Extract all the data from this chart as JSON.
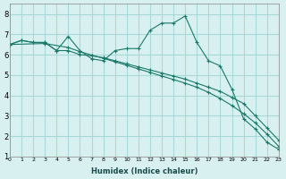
{
  "xlabel": "Humidex (Indice chaleur)",
  "bg_color": "#d8f0f0",
  "grid_color": "#a8d8d8",
  "line_color": "#1a7a6a",
  "xlim": [
    0,
    23
  ],
  "ylim": [
    1,
    8.5
  ],
  "xticks": [
    0,
    1,
    2,
    3,
    4,
    5,
    6,
    7,
    8,
    9,
    10,
    11,
    12,
    13,
    14,
    15,
    16,
    17,
    18,
    19,
    20,
    21,
    22,
    23
  ],
  "yticks": [
    1,
    2,
    3,
    4,
    5,
    6,
    7,
    8
  ],
  "series": [
    {
      "x": [
        0,
        1,
        2,
        3,
        4,
        5,
        6,
        7,
        8,
        9,
        10,
        11,
        12,
        13,
        14,
        15,
        16,
        17,
        18,
        19,
        20,
        21,
        22,
        23
      ],
      "y": [
        6.5,
        6.7,
        6.6,
        6.6,
        6.2,
        6.9,
        6.2,
        5.8,
        5.7,
        6.2,
        6.3,
        6.3,
        7.2,
        7.55,
        7.55,
        7.9,
        6.6,
        5.7,
        5.45,
        4.3,
        2.85,
        2.35,
        1.7,
        1.35
      ],
      "marker": "+"
    },
    {
      "x": [
        0,
        1,
        2,
        3,
        4,
        5,
        6,
        7,
        8,
        9,
        10,
        11,
        12,
        13,
        14,
        15,
        16,
        17,
        18,
        19,
        20,
        21,
        22,
        23
      ],
      "y": [
        6.5,
        6.7,
        6.6,
        6.6,
        6.2,
        6.2,
        6.0,
        5.95,
        5.85,
        5.7,
        5.55,
        5.4,
        5.25,
        5.1,
        4.95,
        4.8,
        4.6,
        4.4,
        4.2,
        3.9,
        3.6,
        3.0,
        2.4,
        1.8
      ],
      "marker": "+"
    },
    {
      "x": [
        0,
        3,
        5,
        6,
        7,
        8,
        9,
        10,
        11,
        12,
        13,
        14,
        15,
        16,
        17,
        18,
        19,
        20,
        21,
        22,
        23
      ],
      "y": [
        6.5,
        6.55,
        6.35,
        6.15,
        5.98,
        5.82,
        5.65,
        5.48,
        5.3,
        5.13,
        4.95,
        4.78,
        4.6,
        4.4,
        4.15,
        3.85,
        3.5,
        3.1,
        2.65,
        2.1,
        1.5
      ],
      "marker": "+"
    }
  ]
}
